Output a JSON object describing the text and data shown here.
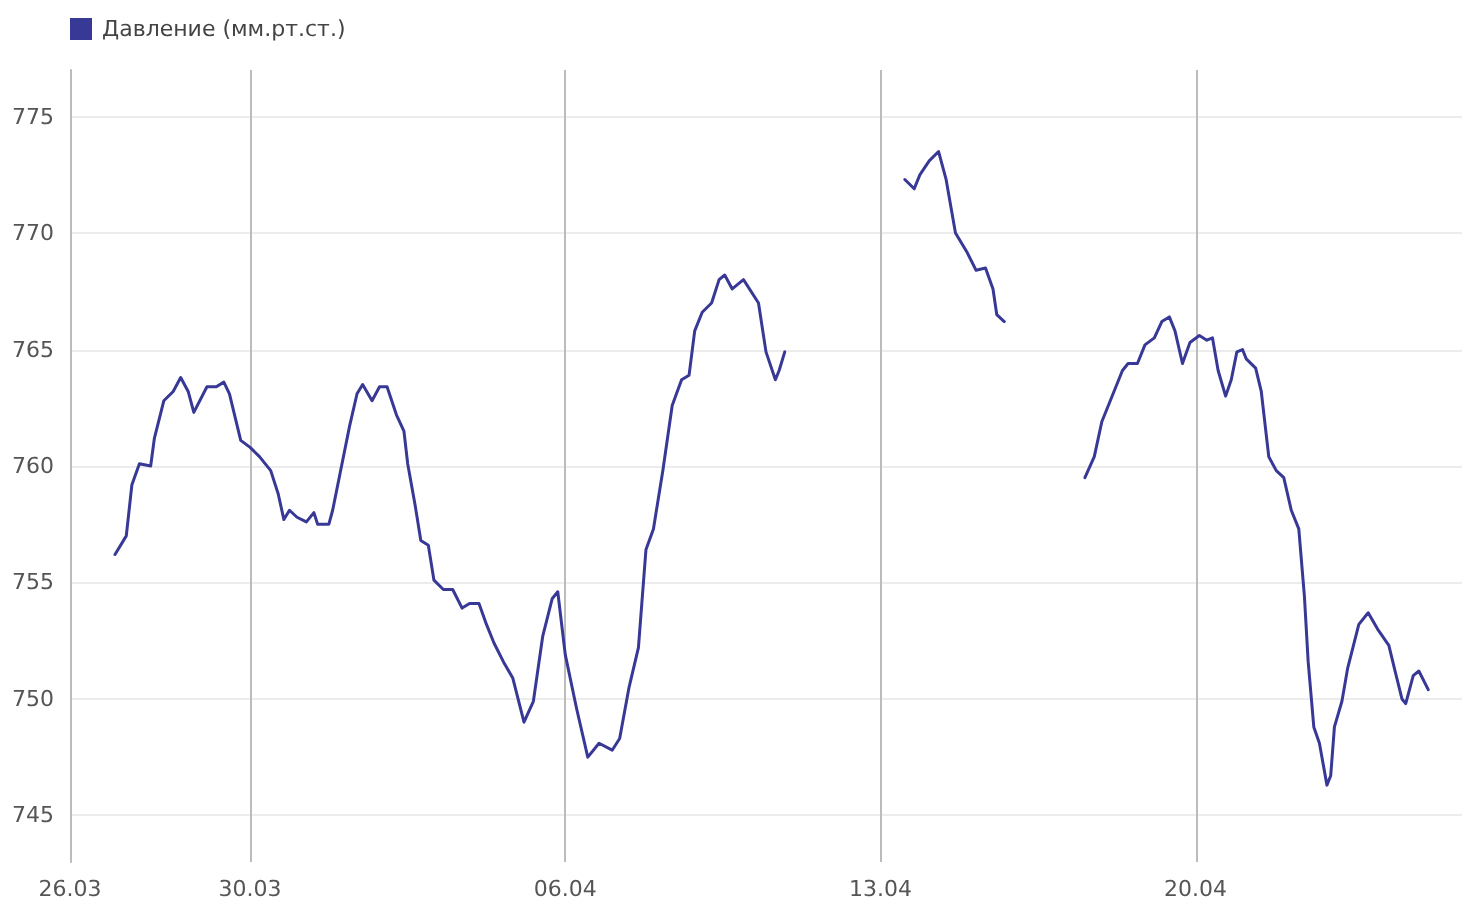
{
  "chart_data": {
    "type": "line",
    "legend": "top left",
    "grid": true,
    "marker": "none",
    "line_style": "solid",
    "xlim": [
      "--03-26T00:00",
      "--04-25T22:00"
    ],
    "xticks": [
      {
        "value": "--03-26T00:00",
        "label": "26.03"
      },
      {
        "value": "--03-30T00:00",
        "label": "30.03"
      },
      {
        "value": "--04-06T00:00",
        "label": "06.04"
      },
      {
        "value": "--04-13T00:00",
        "label": "13.04"
      },
      {
        "value": "--04-20T00:00",
        "label": "20.04"
      }
    ],
    "ylim": [
      743,
      777
    ],
    "yticks": [
      745,
      750,
      755,
      760,
      765,
      770,
      775
    ],
    "series": [
      {
        "name": "Давление (мм.рт.ст.)",
        "color": "#383896",
        "x": [
          "--03-27T00:00",
          "--03-27T06:00",
          "--03-27T09:00",
          "--03-27T13:00",
          "--03-27T19:00",
          "--03-27T21:00",
          "--03-28T02:00",
          "--03-28T07:00",
          "--03-28T11:00",
          "--03-28T15:00",
          "--03-28T18:00",
          "--03-29T01:00",
          "--03-29T06:00",
          "--03-29T10:00",
          "--03-29T13:00",
          "--03-29T19:00",
          "--03-30T00:00",
          "--03-30T05:00",
          "--03-30T11:00",
          "--03-30T15:00",
          "--03-30T18:00",
          "--03-30T21:00",
          "--03-31T01:00",
          "--03-31T06:00",
          "--03-31T10:00",
          "--03-31T12:00",
          "--03-31T18:00",
          "--03-31T20:00",
          "--04-01T00:00",
          "--04-01T05:00",
          "--04-01T09:00",
          "--04-01T12:00",
          "--04-01T17:00",
          "--04-01T21:00",
          "--04-02T01:00",
          "--04-02T06:00",
          "--04-02T10:00",
          "--04-02T12:00",
          "--04-02T16:00",
          "--04-02T19:00",
          "--04-02T23:00",
          "--04-03T02:00",
          "--04-03T07:00",
          "--04-03T12:00",
          "--04-03T17:00",
          "--04-03T21:00",
          "--04-04T02:00",
          "--04-04T06:00",
          "--04-04T10:00",
          "--04-04T15:00",
          "--04-04T20:00",
          "--04-05T02:00",
          "--04-05T07:00",
          "--04-05T12:00",
          "--04-05T17:00",
          "--04-05T20:00",
          "--04-06T00:00",
          "--04-06T06:00",
          "--04-06T12:00",
          "--04-06T18:00",
          "--04-07T01:00",
          "--04-07T05:00",
          "--04-07T10:00",
          "--04-07T15:00",
          "--04-07T19:00",
          "--04-07T23:00",
          "--04-08T04:00",
          "--04-08T09:00",
          "--04-08T14:00",
          "--04-08T18:00",
          "--04-08T21:00",
          "--04-09T01:00",
          "--04-09T06:00",
          "--04-09T10:00",
          "--04-09T13:00",
          "--04-09T17:00",
          "--04-09T23:00",
          "--04-10T07:00",
          "--04-10T11:00",
          "--04-10T16:00",
          "--04-10T18:00",
          "--04-10T21:00",
          "--04-12T00:00",
          "--04-13T13:00",
          "--04-13T18:00",
          "--04-13T21:00",
          "--04-14T02:00",
          "--04-14T07:00",
          "--04-14T11:00",
          "--04-14T16:00",
          "--04-14T22:00",
          "--04-15T03:00",
          "--04-15T08:00",
          "--04-15T12:00",
          "--04-15T14:00",
          "--04-15T18:00",
          "--04-16T12:00",
          "--04-17T13:00",
          "--04-17T18:00",
          "--04-17T22:00",
          "--04-18T03:00",
          "--04-18T09:00",
          "--04-18T12:00",
          "--04-18T17:00",
          "--04-18T21:00",
          "--04-19T02:00",
          "--04-19T06:00",
          "--04-19T10:00",
          "--04-19T13:00",
          "--04-19T17:00",
          "--04-19T21:00",
          "--04-20T02:00",
          "--04-20T06:00",
          "--04-20T09:00",
          "--04-20T12:00",
          "--04-20T16:00",
          "--04-20T19:00",
          "--04-20T22:00",
          "--04-21T01:00",
          "--04-21T03:00",
          "--04-21T08:00",
          "--04-21T11:00",
          "--04-21T15:00",
          "--04-21T19:00",
          "--04-21T23:00",
          "--04-22T03:00",
          "--04-22T07:00",
          "--04-22T10:00",
          "--04-22T12:00",
          "--04-22T15:00",
          "--04-22T18:00",
          "--04-22T22:00",
          "--04-23T00:00",
          "--04-23T02:00",
          "--04-23T06:00",
          "--04-23T09:00",
          "--04-23T15:00",
          "--04-23T20:00",
          "--04-24T01:00",
          "--04-24T07:00",
          "--04-24T10:00",
          "--04-24T14:00",
          "--04-24T16:00",
          "--04-24T20:00",
          "--04-24T23:00",
          "--04-25T04:00"
        ],
        "values": [
          756.2,
          757.0,
          759.2,
          760.1,
          760.0,
          761.2,
          762.8,
          763.2,
          763.8,
          763.2,
          762.3,
          763.4,
          763.4,
          763.6,
          763.1,
          761.1,
          760.8,
          760.4,
          759.8,
          758.8,
          757.7,
          758.1,
          757.8,
          757.6,
          758.0,
          757.5,
          757.5,
          758.1,
          759.7,
          761.7,
          763.1,
          763.5,
          762.8,
          763.4,
          763.4,
          762.2,
          761.5,
          760.1,
          758.3,
          756.8,
          756.6,
          755.1,
          754.7,
          754.7,
          753.9,
          754.1,
          754.1,
          753.2,
          752.4,
          751.6,
          750.9,
          749.0,
          749.9,
          752.7,
          754.3,
          754.6,
          751.9,
          749.6,
          747.5,
          748.1,
          747.8,
          748.3,
          750.5,
          752.2,
          756.4,
          757.3,
          759.8,
          762.6,
          763.7,
          763.9,
          765.8,
          766.6,
          767.0,
          768.0,
          768.2,
          767.6,
          768.0,
          767.0,
          764.9,
          763.7,
          764.1,
          764.9,
          null,
          772.3,
          771.9,
          772.5,
          773.1,
          773.5,
          772.3,
          770.0,
          769.2,
          768.4,
          768.5,
          767.6,
          766.5,
          766.2,
          null,
          759.5,
          760.4,
          761.9,
          762.9,
          764.1,
          764.4,
          764.4,
          765.2,
          765.5,
          766.2,
          766.4,
          765.8,
          764.4,
          765.3,
          765.6,
          765.4,
          765.5,
          764.1,
          763.0,
          763.7,
          764.9,
          765.0,
          764.6,
          764.2,
          763.2,
          760.4,
          759.8,
          759.5,
          758.1,
          757.3,
          754.4,
          751.6,
          748.8,
          748.1,
          746.3,
          746.7,
          748.8,
          749.9,
          751.3,
          753.2,
          753.7,
          753.0,
          752.3,
          751.3,
          750.0,
          749.8,
          751.0,
          751.2,
          750.4
        ]
      }
    ]
  }
}
